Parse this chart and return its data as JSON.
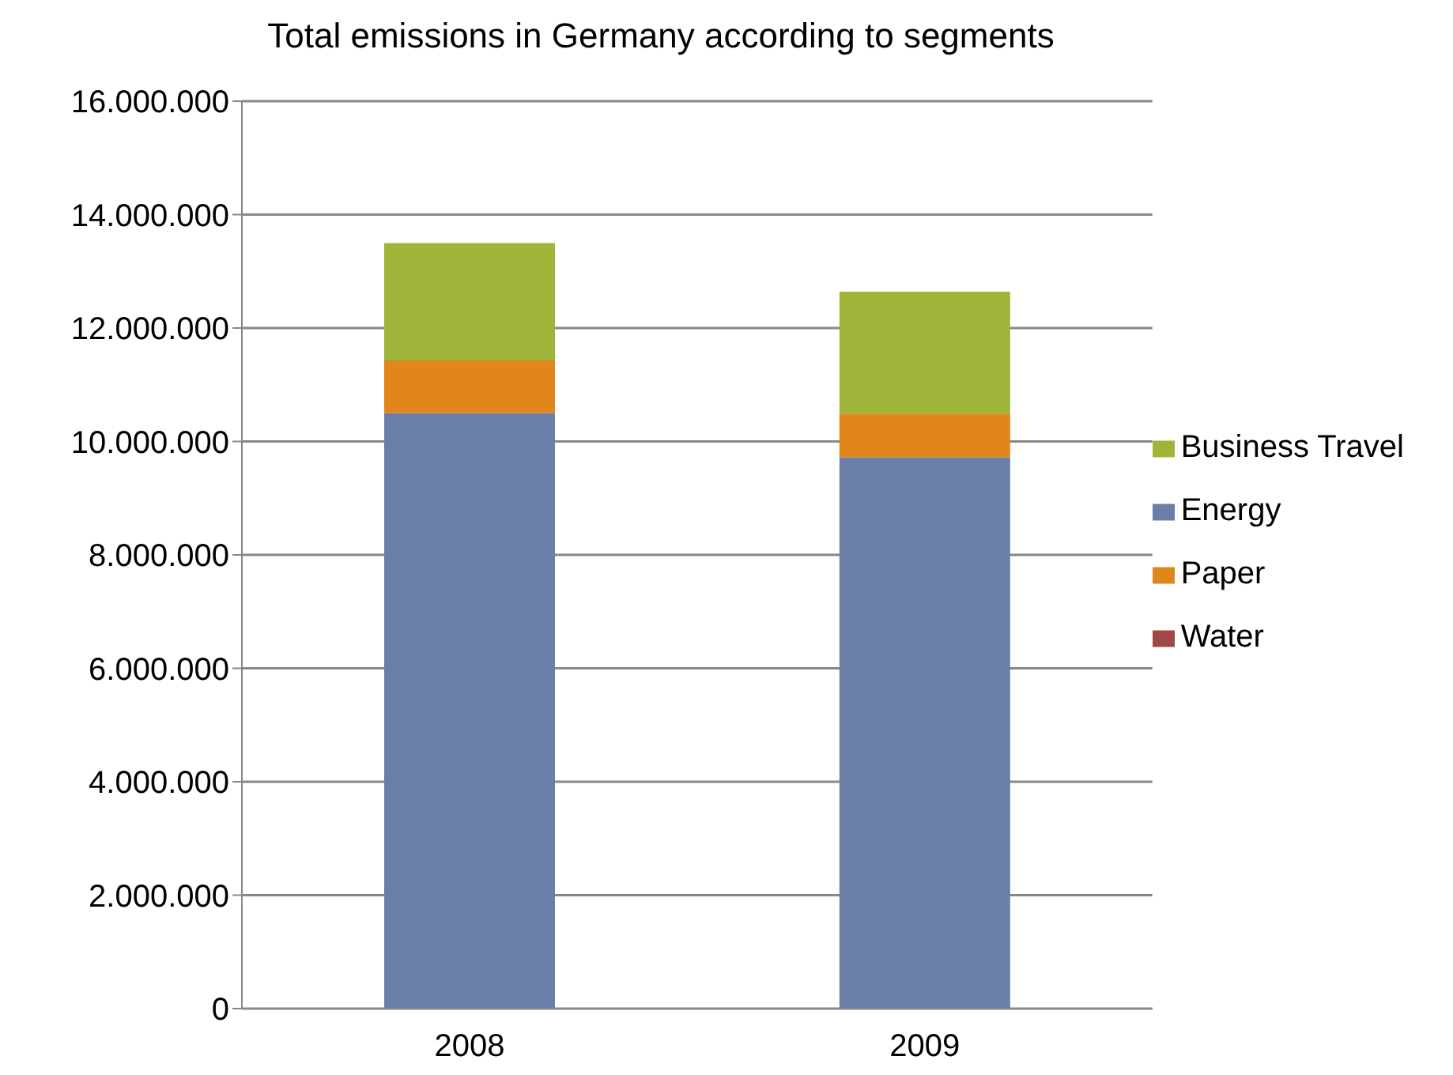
{
  "chart_data": {
    "type": "bar",
    "title": "Total emissions in Germany according to segments",
    "stacked": true,
    "categories": [
      "2008",
      "2009"
    ],
    "series": [
      {
        "name": "Energy",
        "color": "#6a7fa8",
        "values": [
          10500000,
          9720000
        ]
      },
      {
        "name": "Paper",
        "color": "#e0861a",
        "values": [
          930000,
          770000
        ]
      },
      {
        "name": "Water",
        "color": "#a04848",
        "values": [
          0,
          0
        ]
      },
      {
        "name": "Business Travel",
        "color": "#9fb53a",
        "values": [
          2070000,
          2150000
        ]
      }
    ],
    "ylim": [
      0,
      16000000
    ],
    "yticks": [
      0,
      {
        "value": 2000000,
        "label": "2.000.000"
      },
      {
        "value": 4000000,
        "label": "4.000.000"
      },
      {
        "value": 6000000,
        "label": "6.000.000"
      },
      {
        "value": 8000000,
        "label": "8.000.000"
      },
      {
        "value": 10000000,
        "label": "10.000.000"
      },
      {
        "value": 12000000,
        "label": "12.000.000"
      },
      {
        "value": 14000000,
        "label": "14.000.000"
      },
      {
        "value": 16000000,
        "label": "16.000.000"
      }
    ],
    "grid": "y",
    "legend": "right"
  }
}
